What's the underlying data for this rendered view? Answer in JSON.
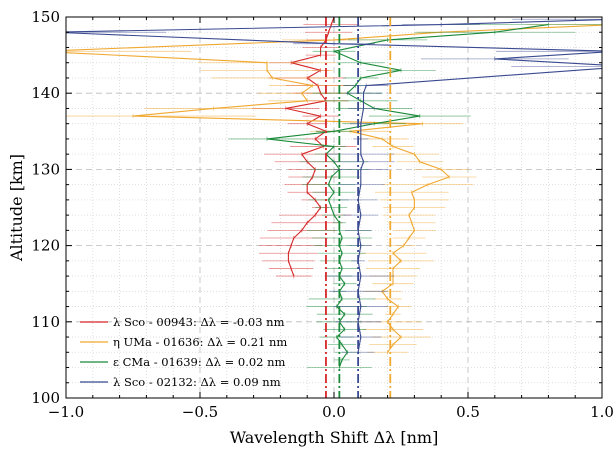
{
  "chart_data": {
    "type": "line",
    "xlabel": "Wavelength Shift Δλ [nm]",
    "ylabel": "Altitude [km]",
    "xlim": [
      -1.0,
      1.0
    ],
    "ylim": [
      100,
      150
    ],
    "xticks": [
      -1.0,
      -0.5,
      0.0,
      0.5,
      1.0
    ],
    "xtick_labels": [
      "−1.0",
      "−0.5",
      "0.0",
      "0.5",
      "1.0"
    ],
    "yticks": [
      100,
      110,
      120,
      130,
      140,
      150
    ],
    "ytick_labels": [
      "100",
      "110",
      "120",
      "130",
      "140",
      "150"
    ],
    "grid": true,
    "legend_position": "bottom-left",
    "series": [
      {
        "name": "λ Sco - 00943: Δλ = -0.03 nm",
        "color": "#d62728",
        "mean": -0.03,
        "points": [
          [
            -0.15,
            116.0
          ],
          [
            -0.16,
            117.0
          ],
          [
            -0.17,
            118.0
          ],
          [
            -0.17,
            119.0
          ],
          [
            -0.16,
            120.0
          ],
          [
            -0.15,
            121.0
          ],
          [
            -0.12,
            122.0
          ],
          [
            -0.1,
            123.0
          ],
          [
            -0.07,
            124.0
          ],
          [
            -0.05,
            125.0
          ],
          [
            -0.07,
            126.0
          ],
          [
            -0.1,
            127.0
          ],
          [
            -0.1,
            128.0
          ],
          [
            -0.08,
            129.0
          ],
          [
            -0.07,
            130.0
          ],
          [
            -0.1,
            131.0
          ],
          [
            -0.12,
            132.0
          ],
          [
            -0.04,
            133.0
          ],
          [
            -0.07,
            134.0
          ],
          [
            -0.03,
            135.0
          ],
          [
            -0.1,
            136.0
          ],
          [
            -0.05,
            137.0
          ],
          [
            -0.18,
            138.0
          ],
          [
            -0.03,
            139.0
          ],
          [
            -0.05,
            140.0
          ],
          [
            -0.06,
            141.0
          ],
          [
            -0.1,
            142.0
          ],
          [
            -0.05,
            143.0
          ],
          [
            -0.16,
            144.0
          ],
          [
            -0.05,
            145.0
          ],
          [
            -0.05,
            146.0
          ],
          [
            -0.03,
            147.0
          ],
          [
            -0.02,
            148.0
          ],
          [
            -0.01,
            149.0
          ],
          [
            0.0,
            150.0
          ]
        ]
      },
      {
        "name": "η UMa - 01636: Δλ = 0.21 nm",
        "color": "#f0a830",
        "mean": 0.21,
        "points": [
          [
            0.2,
            106.0
          ],
          [
            0.22,
            107.0
          ],
          [
            0.25,
            108.0
          ],
          [
            0.22,
            109.0
          ],
          [
            0.2,
            110.0
          ],
          [
            0.22,
            111.0
          ],
          [
            0.24,
            112.0
          ],
          [
            0.2,
            113.0
          ],
          [
            0.18,
            114.0
          ],
          [
            0.22,
            115.0
          ],
          [
            0.22,
            116.0
          ],
          [
            0.22,
            117.0
          ],
          [
            0.25,
            118.0
          ],
          [
            0.22,
            119.0
          ],
          [
            0.26,
            120.0
          ],
          [
            0.28,
            121.0
          ],
          [
            0.3,
            122.0
          ],
          [
            0.29,
            123.0
          ],
          [
            0.28,
            124.0
          ],
          [
            0.3,
            125.0
          ],
          [
            0.3,
            126.0
          ],
          [
            0.29,
            127.0
          ],
          [
            0.35,
            128.0
          ],
          [
            0.43,
            129.0
          ],
          [
            0.4,
            130.0
          ],
          [
            0.32,
            131.0
          ],
          [
            0.3,
            132.0
          ],
          [
            0.22,
            133.0
          ],
          [
            0.18,
            134.0
          ],
          [
            0.06,
            135.0
          ],
          [
            0.33,
            136.0
          ],
          [
            -0.75,
            137.0
          ],
          [
            -0.45,
            138.0
          ],
          [
            -0.1,
            139.0
          ],
          [
            -0.12,
            140.0
          ],
          [
            -0.08,
            141.0
          ],
          [
            -0.23,
            142.0
          ],
          [
            -0.25,
            143.0
          ],
          [
            -0.25,
            144.0
          ],
          [
            -1.1,
            145.5
          ],
          [
            0.0,
            147.0
          ],
          [
            0.4,
            148.0
          ],
          [
            1.05,
            149.0
          ]
        ]
      },
      {
        "name": "ε CMa - 01639: Δλ = 0.02 nm",
        "color": "#1a8a3a",
        "mean": 0.02,
        "points": [
          [
            0.02,
            104.0
          ],
          [
            0.03,
            105.0
          ],
          [
            0.05,
            106.0
          ],
          [
            0.03,
            107.0
          ],
          [
            0.01,
            108.0
          ],
          [
            0.04,
            109.0
          ],
          [
            0.02,
            110.0
          ],
          [
            0.04,
            111.0
          ],
          [
            0.01,
            112.0
          ],
          [
            0.03,
            113.0
          ],
          [
            0.02,
            114.0
          ],
          [
            0.04,
            115.0
          ],
          [
            0.02,
            116.0
          ],
          [
            0.03,
            117.0
          ],
          [
            0.02,
            118.0
          ],
          [
            0.03,
            119.0
          ],
          [
            0.02,
            120.0
          ],
          [
            0.03,
            121.0
          ],
          [
            0.02,
            122.0
          ],
          [
            0.02,
            123.0
          ],
          [
            0.0,
            124.0
          ],
          [
            -0.01,
            125.0
          ],
          [
            -0.02,
            126.0
          ],
          [
            0.0,
            127.0
          ],
          [
            -0.02,
            128.0
          ],
          [
            -0.01,
            129.0
          ],
          [
            0.02,
            130.0
          ],
          [
            0.0,
            131.0
          ],
          [
            -0.03,
            132.0
          ],
          [
            0.0,
            133.0
          ],
          [
            -0.25,
            134.0
          ],
          [
            0.0,
            135.0
          ],
          [
            0.15,
            136.0
          ],
          [
            0.32,
            137.0
          ],
          [
            0.15,
            138.0
          ],
          [
            0.1,
            139.0
          ],
          [
            0.05,
            140.0
          ],
          [
            0.08,
            141.0
          ],
          [
            0.1,
            142.0
          ],
          [
            0.25,
            143.0
          ],
          [
            0.1,
            144.0
          ],
          [
            0.0,
            145.5
          ],
          [
            0.2,
            147.0
          ],
          [
            0.6,
            148.0
          ],
          [
            0.8,
            149.0
          ]
        ]
      },
      {
        "name": "λ Sco - 02132: Δλ = 0.09 nm",
        "color": "#3a4a90",
        "mean": 0.09,
        "points": [
          [
            0.09,
            106.0
          ],
          [
            0.1,
            108.0
          ],
          [
            0.09,
            110.0
          ],
          [
            0.1,
            112.0
          ],
          [
            0.09,
            114.0
          ],
          [
            0.1,
            116.0
          ],
          [
            0.09,
            118.0
          ],
          [
            0.1,
            120.0
          ],
          [
            0.09,
            122.0
          ],
          [
            0.1,
            124.0
          ],
          [
            0.09,
            126.0
          ],
          [
            0.1,
            128.0
          ],
          [
            0.1,
            130.0
          ],
          [
            0.11,
            131.0
          ],
          [
            0.1,
            132.0
          ],
          [
            0.1,
            134.0
          ],
          [
            0.1,
            136.0
          ],
          [
            0.11,
            138.0
          ],
          [
            0.11,
            140.0
          ],
          [
            0.12,
            141.0
          ],
          [
            1.1,
            143.5
          ],
          [
            0.6,
            144.5
          ],
          [
            1.05,
            145.5
          ],
          [
            0.0,
            146.5
          ],
          [
            -1.05,
            148.0
          ],
          [
            0.4,
            149.0
          ],
          [
            1.05,
            149.7
          ]
        ]
      }
    ]
  }
}
